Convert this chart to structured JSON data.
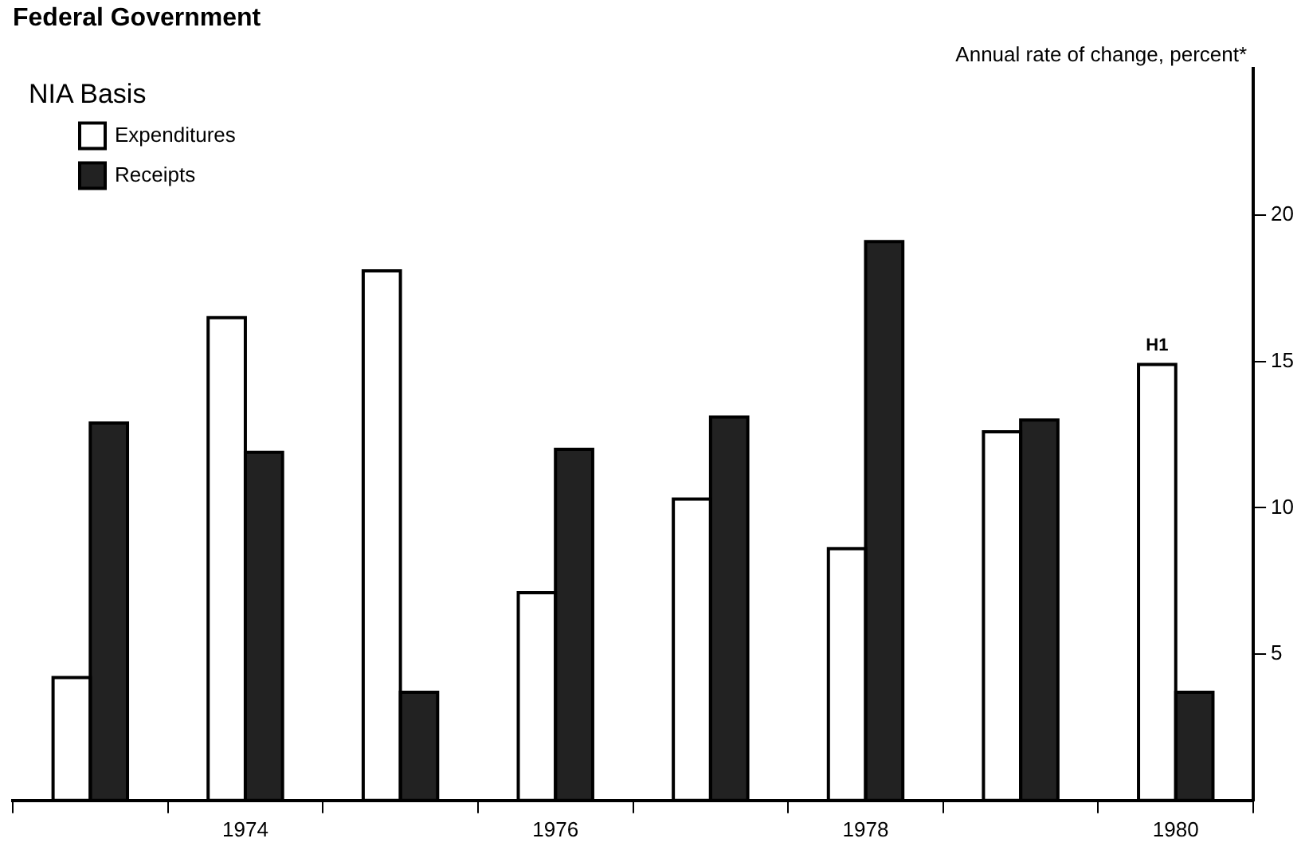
{
  "chart_data": {
    "type": "bar",
    "title": "Federal Government",
    "subtitle": "NIA Basis",
    "ylabel": "Annual rate of change, percent*",
    "categories": [
      null,
      "1974",
      null,
      "1976",
      null,
      "1978",
      null,
      "1980"
    ],
    "series": [
      {
        "name": "Expenditures",
        "color": "#ffffff",
        "values": [
          4.2,
          16.5,
          18.1,
          7.1,
          10.3,
          8.6,
          12.6,
          14.9
        ]
      },
      {
        "name": "Receipts",
        "color": "#222222",
        "values": [
          12.9,
          11.9,
          3.7,
          12.0,
          13.1,
          19.1,
          13.0,
          3.7
        ]
      }
    ],
    "ylim": [
      0,
      25
    ],
    "yticks": [
      5,
      10,
      15,
      20
    ],
    "grid": false,
    "legend": "top left",
    "annotations": [
      {
        "text": "H1",
        "x": "1980",
        "y": 14.9
      }
    ]
  }
}
